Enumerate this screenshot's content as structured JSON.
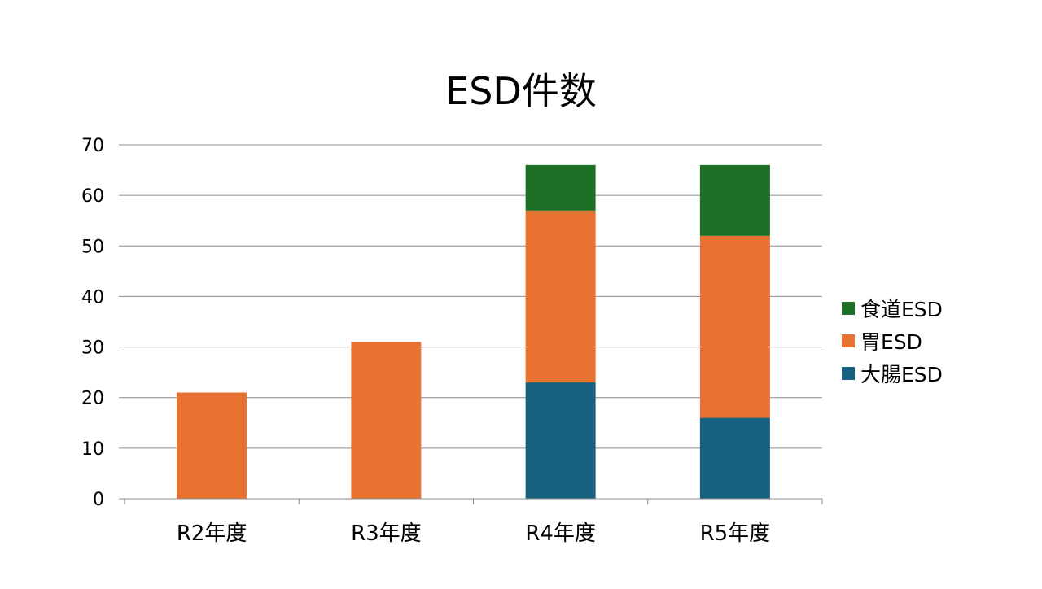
{
  "chart_data": {
    "type": "bar",
    "stacked": true,
    "title": "ESD件数",
    "xlabel": "",
    "ylabel": "",
    "categories": [
      "R2年度",
      "R3年度",
      "R4年度",
      "R5年度"
    ],
    "series": [
      {
        "name": "大腸ESD",
        "color": "#17607f",
        "values": [
          0,
          0,
          23,
          16
        ]
      },
      {
        "name": "胃ESD",
        "color": "#e87232",
        "values": [
          21,
          31,
          34,
          36
        ]
      },
      {
        "name": "食道ESD",
        "color": "#1d6f26",
        "values": [
          0,
          0,
          9,
          14
        ]
      }
    ],
    "legend_order": [
      "食道ESD",
      "胃ESD",
      "大腸ESD"
    ],
    "legend_position": "right",
    "ylim": [
      0,
      70
    ],
    "yticks": [
      0,
      10,
      20,
      30,
      40,
      50,
      60,
      70
    ],
    "grid": true
  }
}
